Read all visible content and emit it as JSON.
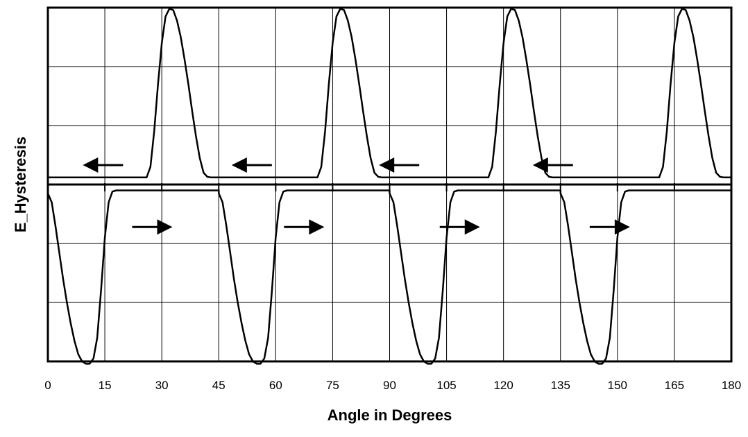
{
  "chart_data": {
    "type": "line",
    "title": "",
    "xlabel": "Angle in Degrees",
    "ylabel": "E_Hysteresis",
    "xlim": [
      0,
      180
    ],
    "x_ticks": [
      0,
      15,
      30,
      45,
      60,
      75,
      90,
      105,
      120,
      135,
      150,
      165,
      180
    ],
    "ylim": [
      -3,
      3
    ],
    "y_ticks_shown_as_labels": false,
    "grid": true,
    "legend": "none",
    "period_degrees": 45,
    "series": [
      {
        "x": [
          0,
          1,
          2,
          3,
          4,
          5,
          6,
          7,
          8,
          9,
          10,
          11,
          12,
          13,
          14,
          15,
          16,
          17,
          18,
          19,
          20,
          25,
          30,
          35,
          40,
          44,
          44.5,
          45
        ],
        "y": [
          0.05,
          0.05,
          0.05,
          0.04,
          0.03,
          0.03,
          0.03,
          0.03,
          0.03,
          0.03,
          0.03,
          0.03,
          0.03,
          0.03,
          0.03,
          0.03,
          0.03,
          0.03,
          0.03,
          0.03,
          0.03,
          0.03,
          0.03,
          0.03,
          0.03,
          0.03,
          0.03,
          0.05
        ]
      },
      {
        "name": "",
        "x": [
          0,
          1,
          2,
          3,
          4,
          5,
          6,
          7,
          8,
          9,
          10,
          11,
          12,
          13,
          14,
          15,
          16,
          17,
          18,
          19,
          20,
          21,
          22,
          23,
          24,
          25,
          26,
          27,
          28,
          29,
          30,
          31,
          32,
          33,
          34,
          35,
          36,
          37,
          38,
          39,
          40,
          41,
          42,
          43,
          44,
          45
        ],
        "y": [
          null,
          null,
          null,
          null,
          null,
          null,
          null,
          null,
          null,
          null,
          null,
          null,
          null,
          null,
          null,
          null,
          null,
          null,
          null,
          null,
          null,
          null,
          null,
          null,
          null,
          null,
          null,
          null,
          null,
          null,
          null,
          null,
          null,
          null,
          null,
          null,
          null,
          null,
          null,
          null,
          null,
          null,
          null,
          null,
          null,
          null
        ]
      }
    ],
    "upper_curve": {
      "x": [
        0,
        26,
        27,
        28,
        29,
        30,
        31,
        32,
        33,
        34,
        35,
        36,
        37,
        38,
        39,
        40,
        41,
        42,
        43,
        44,
        45
      ],
      "y": [
        0.12,
        0.12,
        0.3,
        0.9,
        1.7,
        2.4,
        2.85,
        2.98,
        2.96,
        2.78,
        2.5,
        2.12,
        1.7,
        1.25,
        0.82,
        0.45,
        0.2,
        0.13,
        0.12,
        0.12,
        0.12
      ]
    },
    "lower_curve": {
      "x": [
        0,
        1,
        2,
        3,
        4,
        5,
        6,
        7,
        8,
        9,
        10,
        11,
        12,
        13,
        14,
        15,
        16,
        17,
        18,
        19,
        45
      ],
      "y": [
        -0.15,
        -0.3,
        -0.7,
        -1.15,
        -1.6,
        -2.0,
        -2.35,
        -2.65,
        -2.88,
        -3.0,
        -3.04,
        -3.04,
        -2.95,
        -2.6,
        -1.8,
        -0.9,
        -0.3,
        -0.12,
        -0.1,
        -0.1,
        -0.1
      ]
    },
    "arrows": {
      "upper_direction": "left",
      "lower_direction": "right",
      "upper_x": [
        14.5,
        53.7,
        92.5,
        133
      ],
      "upper_y": 0.33,
      "lower_x": [
        27.5,
        67.5,
        108.5,
        148
      ],
      "lower_y": -0.72
    }
  }
}
